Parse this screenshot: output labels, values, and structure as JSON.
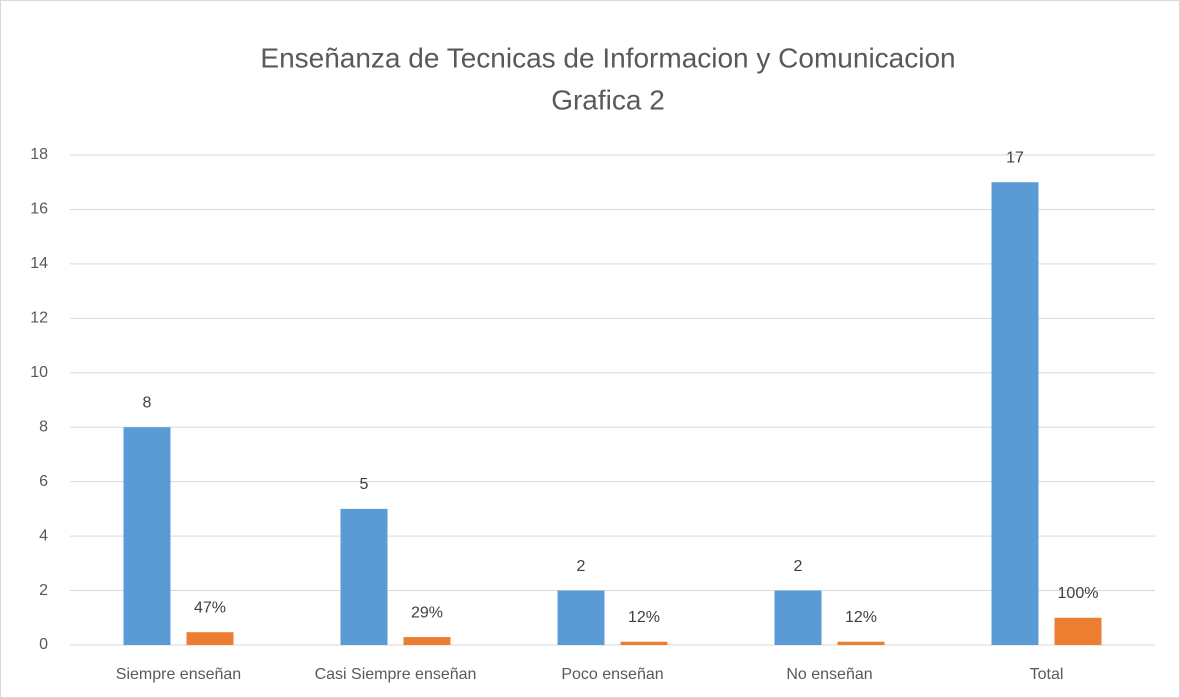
{
  "chart_data": {
    "type": "bar",
    "title": "Enseñanza de Tecnicas de Informacion y Comunicacion",
    "subtitle": "Grafica 2",
    "categories": [
      "Siempre enseñan",
      "Casi Siempre enseñan",
      "Poco enseñan",
      "No enseñan",
      "Total"
    ],
    "series": [
      {
        "color": "#5b9bd5",
        "values": [
          8,
          5,
          2,
          2,
          17
        ]
      },
      {
        "color": "#ed7d31",
        "values": [
          0.47,
          0.29,
          0.12,
          0.12,
          1
        ],
        "value_labels": [
          "47%",
          "29%",
          "12%",
          "12%",
          "100%"
        ]
      }
    ],
    "ylim": [
      0,
      18
    ],
    "yticks": [
      0,
      2,
      4,
      6,
      8,
      10,
      12,
      14,
      16,
      18
    ],
    "grid": true
  }
}
